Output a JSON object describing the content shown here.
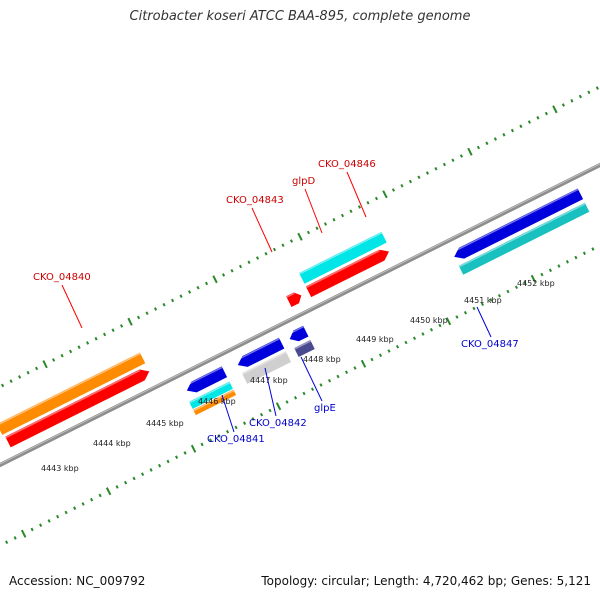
{
  "title": "Citrobacter koseri ATCC BAA-895, complete genome",
  "accession": "Accession: NC_009792",
  "summary": "Topology: circular; Length: 4,720,462 bp; Genes: 5,121",
  "colors": {
    "background": "#ffffff",
    "backbone": "#8c8c8c",
    "ruler": "#2a8a2a",
    "forward_cds": "#ff0000",
    "reverse_cds": "#0000dd",
    "forward_label": "#cc0000",
    "reverse_label": "#0000cc",
    "cog_orange": "#ff8c00",
    "cog_cyan": "#00e5e5",
    "cog_teal": "#18c0c0",
    "cog_gray": "#cfcfcf",
    "cog_slate": "#4a4a90"
  },
  "ticks": [
    "4443 kbp",
    "4444 kbp",
    "4445 kbp",
    "4446 kbp",
    "4447 kbp",
    "4448 kbp",
    "4449 kbp",
    "4450 kbp",
    "4451 kbp",
    "4452 kbp"
  ],
  "forward_genes": [
    "CKO_04840",
    "CKO_04843",
    "glpD",
    "CKO_04846"
  ],
  "reverse_genes": [
    "CKO_04841",
    "CKO_04842",
    "glpE",
    "CKO_04847"
  ]
}
